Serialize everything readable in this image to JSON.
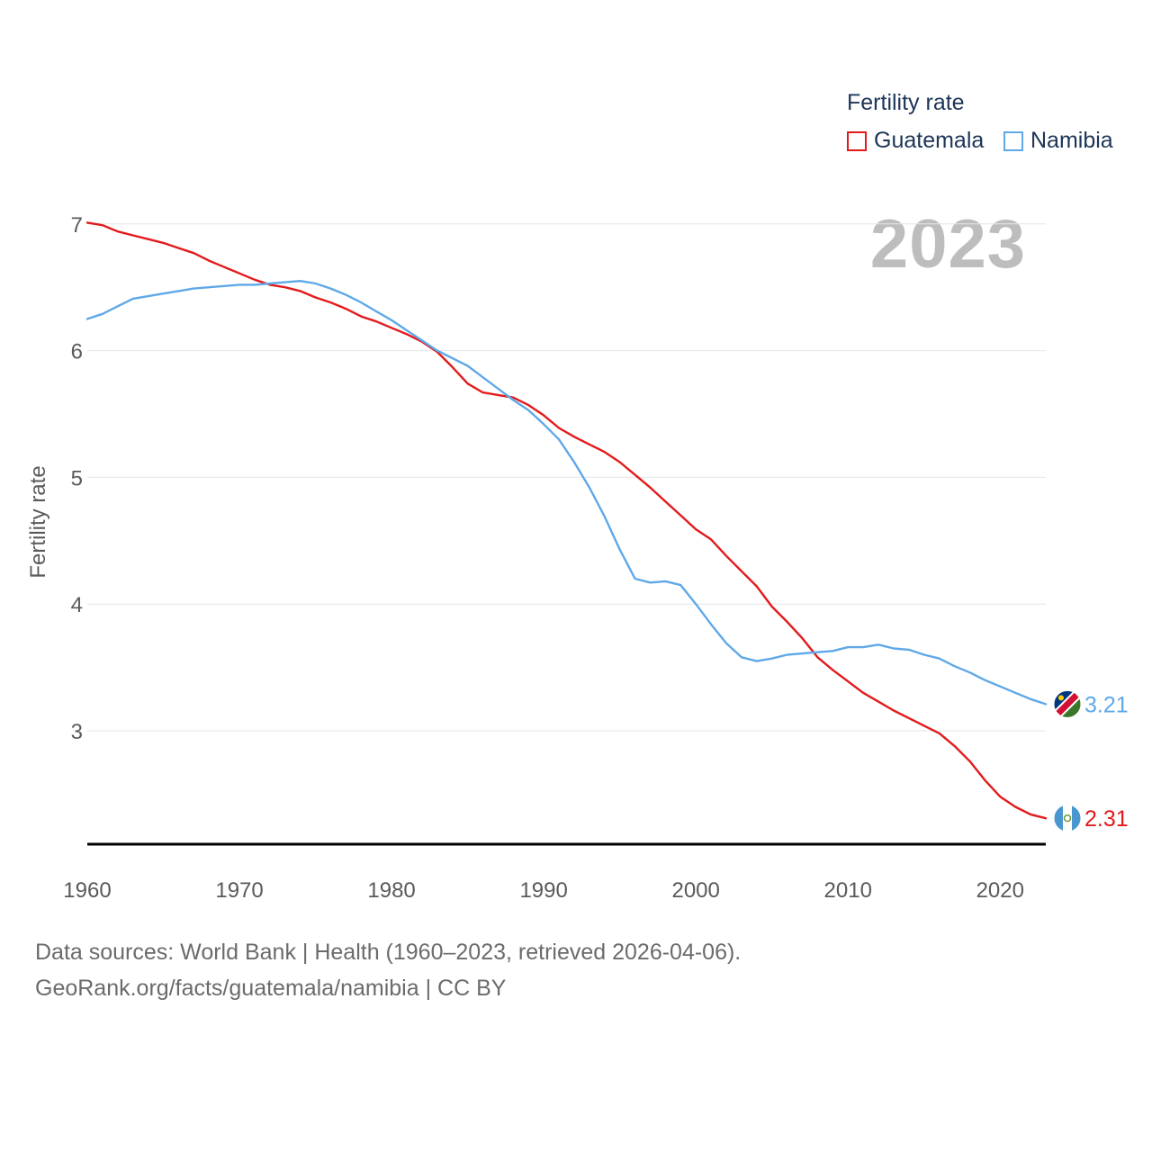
{
  "legend": {
    "title": "Fertility rate",
    "items": [
      {
        "name": "Guatemala",
        "color": "#e31a1c"
      },
      {
        "name": "Namibia",
        "color": "#5fa8e8"
      }
    ]
  },
  "current_year": "2023",
  "source_line1": "Data sources: World Bank | Health (1960–2023, retrieved 2026-04-06).",
  "source_line2": "GeoRank.org/facts/guatemala/namibia | CC BY",
  "chart_data": {
    "type": "line",
    "title": "",
    "xlabel": "",
    "ylabel": "Fertility rate",
    "xlim": [
      1960,
      2023
    ],
    "ylim": [
      2.1,
      7.1
    ],
    "x_ticks": [
      1960,
      1970,
      1980,
      1990,
      2000,
      2010,
      2020
    ],
    "y_ticks": [
      3,
      4,
      5,
      6,
      7
    ],
    "grid": true,
    "legend_position": "top-right",
    "x": [
      1960,
      1961,
      1962,
      1963,
      1964,
      1965,
      1966,
      1967,
      1968,
      1969,
      1970,
      1971,
      1972,
      1973,
      1974,
      1975,
      1976,
      1977,
      1978,
      1979,
      1980,
      1981,
      1982,
      1983,
      1984,
      1985,
      1986,
      1987,
      1988,
      1989,
      1990,
      1991,
      1992,
      1993,
      1994,
      1995,
      1996,
      1997,
      1998,
      1999,
      2000,
      2001,
      2002,
      2003,
      2004,
      2005,
      2006,
      2007,
      2008,
      2009,
      2010,
      2011,
      2012,
      2013,
      2014,
      2015,
      2016,
      2017,
      2018,
      2019,
      2020,
      2021,
      2022,
      2023
    ],
    "series": [
      {
        "name": "Guatemala",
        "color": "#e31a1c",
        "end_label": "2.31",
        "values": [
          7.01,
          6.99,
          6.94,
          6.91,
          6.88,
          6.85,
          6.81,
          6.77,
          6.71,
          6.66,
          6.61,
          6.56,
          6.52,
          6.5,
          6.47,
          6.42,
          6.38,
          6.33,
          6.27,
          6.23,
          6.18,
          6.13,
          6.07,
          5.99,
          5.87,
          5.74,
          5.67,
          5.65,
          5.63,
          5.57,
          5.49,
          5.39,
          5.32,
          5.26,
          5.2,
          5.12,
          5.02,
          4.92,
          4.81,
          4.7,
          4.59,
          4.51,
          4.38,
          4.26,
          4.14,
          3.98,
          3.86,
          3.73,
          3.58,
          3.48,
          3.39,
          3.3,
          3.23,
          3.16,
          3.1,
          3.04,
          2.98,
          2.88,
          2.76,
          2.61,
          2.48,
          2.4,
          2.34,
          2.31
        ]
      },
      {
        "name": "Namibia",
        "color": "#5fa8e8",
        "end_label": "3.21",
        "values": [
          6.25,
          6.29,
          6.35,
          6.41,
          6.43,
          6.45,
          6.47,
          6.49,
          6.5,
          6.51,
          6.52,
          6.52,
          6.53,
          6.54,
          6.55,
          6.53,
          6.49,
          6.44,
          6.38,
          6.31,
          6.24,
          6.16,
          6.08,
          6.0,
          5.94,
          5.88,
          5.79,
          5.7,
          5.61,
          5.53,
          5.42,
          5.3,
          5.12,
          4.92,
          4.69,
          4.43,
          4.2,
          4.17,
          4.18,
          4.15,
          4.0,
          3.84,
          3.69,
          3.58,
          3.55,
          3.57,
          3.6,
          3.61,
          3.62,
          3.63,
          3.66,
          3.66,
          3.68,
          3.65,
          3.64,
          3.6,
          3.57,
          3.51,
          3.46,
          3.4,
          3.35,
          3.3,
          3.25,
          3.21
        ]
      }
    ]
  }
}
